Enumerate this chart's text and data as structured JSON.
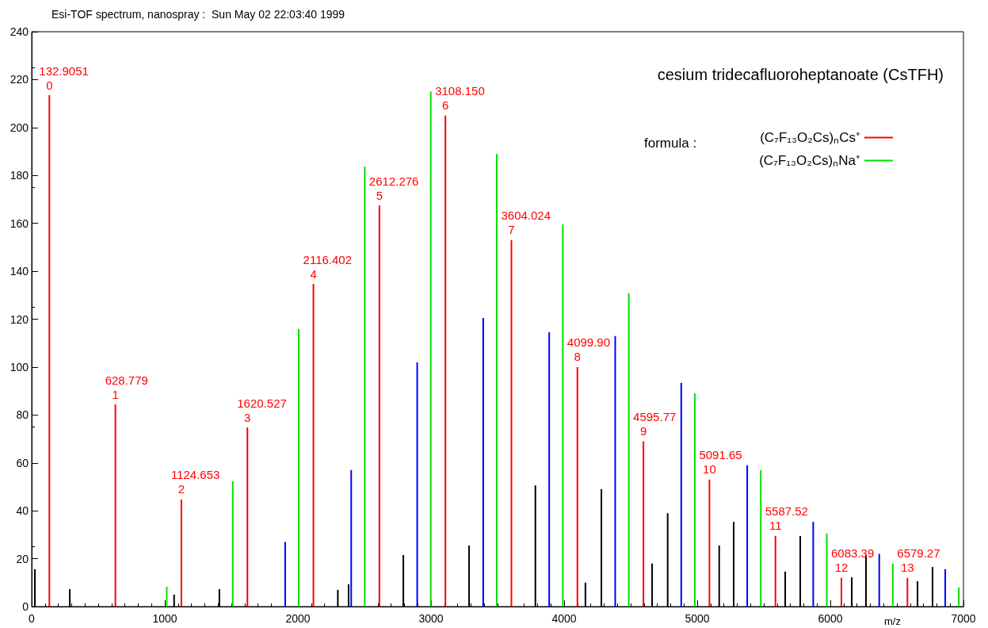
{
  "chart_data": {
    "type": "bar",
    "title": "Esi-TOF spectrum, nanospray :  Sun May 02 22:03:40 1999",
    "xlabel": "m/z",
    "legend_title": "formula :",
    "legend": "top right",
    "grid": false,
    "xlim": [
      0,
      7000
    ],
    "xticks": [
      0,
      1000,
      2000,
      3000,
      4000,
      5000,
      6000,
      7000
    ],
    "ylim": [
      0,
      240
    ],
    "yticks": [
      0,
      20,
      40,
      60,
      80,
      100,
      120,
      140,
      160,
      180,
      200,
      220,
      240
    ],
    "series": [
      {
        "name": "(C₇F₁₃O₂Cs)ₙCs⁺",
        "color": "#ff0000",
        "x": [
          132.9051,
          628.779,
          1124.653,
          1620.527,
          2116.402,
          2612.276,
          3108.15,
          3604.024,
          4099.9,
          4595.77,
          5091.65,
          5587.52,
          6083.39,
          6579.27
        ],
        "values": [
          213.5,
          84.4,
          44.7,
          74.8,
          134.7,
          167.5,
          205,
          153,
          100,
          69,
          53,
          29.5,
          12,
          12
        ]
      },
      {
        "name": "(C₇F₁₃O₂Cs)ₙNa⁺",
        "color": "#00e000",
        "x": [
          1014.7,
          1510.5,
          2006.4,
          2502.3,
          2998.2,
          3494.1,
          3990,
          4485.9,
          4981.8,
          5477.6,
          5973.5,
          6469.4,
          6965.3
        ],
        "values": [
          8.3,
          52.3,
          115.9,
          183.7,
          215,
          189,
          159.6,
          130.8,
          89,
          57,
          30.5,
          18,
          8
        ]
      },
      {
        "color": "#0000ff",
        "x": [
          1904.5,
          2400.4,
          2896.3,
          3392.1,
          3888,
          4383.9,
          4879.8,
          5375.6,
          5871.5,
          6367.4,
          6863.3
        ],
        "values": [
          27,
          57,
          102,
          120.5,
          114.5,
          113,
          93.4,
          59,
          35.4,
          22,
          15.6
        ]
      },
      {
        "color": "#000000",
        "x": [
          24,
          286,
          1070,
          1410,
          2300,
          2381,
          2792,
          3286,
          3784,
          4160,
          4280,
          4661,
          4778,
          5165,
          5274,
          5661,
          5774,
          6161,
          6268,
          6655,
          6768
        ],
        "values": [
          15.6,
          7.3,
          5,
          7.3,
          7,
          9.3,
          21.5,
          25.5,
          50.6,
          10,
          49,
          18,
          39,
          25.5,
          35.4,
          14.6,
          29.5,
          12.2,
          21.5,
          10.6,
          16.5
        ]
      }
    ],
    "annotations": [
      {
        "text": "132.9051\n0",
        "x": 132.9051,
        "y": 213.5
      },
      {
        "text": "628.779\n1",
        "x": 628.779,
        "y": 84.4
      },
      {
        "text": "1124.653\n2",
        "x": 1124.653,
        "y": 44.7
      },
      {
        "text": "1620.527\n3",
        "x": 1620.527,
        "y": 74.8
      },
      {
        "text": "2116.402\n4",
        "x": 2116.402,
        "y": 134.7
      },
      {
        "text": "2612.276\n5",
        "x": 2612.276,
        "y": 167.5
      },
      {
        "text": "3108.150\n6",
        "x": 3108.15,
        "y": 205
      },
      {
        "text": "3604.024\n7",
        "x": 3604.024,
        "y": 153
      },
      {
        "text": "4099.90\n8",
        "x": 4099.9,
        "y": 100
      },
      {
        "text": "4595.77\n9",
        "x": 4595.77,
        "y": 69
      },
      {
        "text": "5091.65\n10",
        "x": 5091.65,
        "y": 53
      },
      {
        "text": "5587.52\n11",
        "x": 5587.52,
        "y": 29.5
      },
      {
        "text": "6083.39\n12",
        "x": 6083.39,
        "y": 12
      },
      {
        "text": "6579.27\n13",
        "x": 6579.27,
        "y": 12
      },
      "cesium tridecafluoroheptanoate (CsTFH)"
    ]
  }
}
